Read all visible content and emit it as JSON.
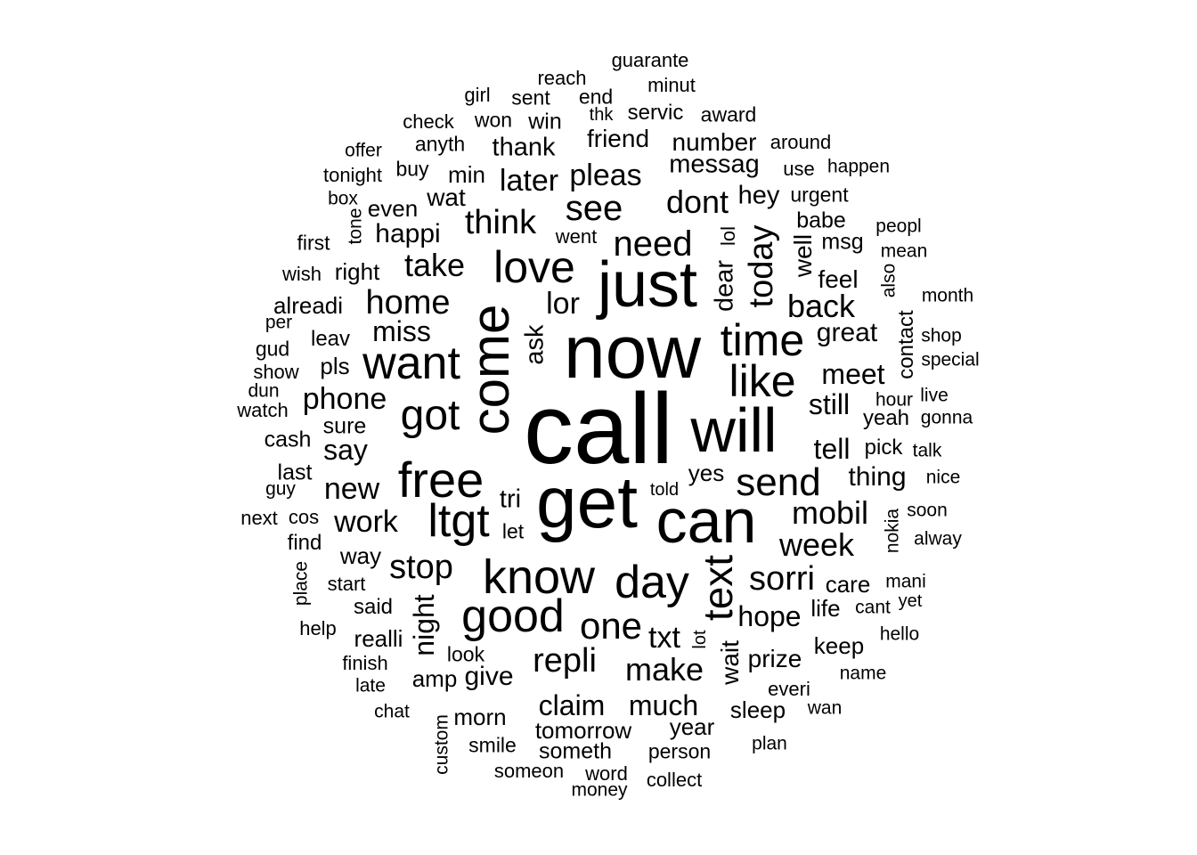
{
  "word_cloud": {
    "text_color": "#000000",
    "background": "#ffffff",
    "words": [
      {
        "text": "call",
        "weight": 100,
        "vertical": false
      },
      {
        "text": "now",
        "weight": 82,
        "vertical": false
      },
      {
        "text": "get",
        "weight": 80,
        "vertical": false
      },
      {
        "text": "can",
        "weight": 70,
        "vertical": false
      },
      {
        "text": "just",
        "weight": 70,
        "vertical": false
      },
      {
        "text": "will",
        "weight": 68,
        "vertical": false
      },
      {
        "text": "come",
        "weight": 58,
        "vertical": true
      },
      {
        "text": "free",
        "weight": 55,
        "vertical": false
      },
      {
        "text": "ltgt",
        "weight": 52,
        "vertical": false
      },
      {
        "text": "know",
        "weight": 52,
        "vertical": false
      },
      {
        "text": "good",
        "weight": 50,
        "vertical": false
      },
      {
        "text": "day",
        "weight": 50,
        "vertical": false
      },
      {
        "text": "want",
        "weight": 50,
        "vertical": false
      },
      {
        "text": "time",
        "weight": 48,
        "vertical": false
      },
      {
        "text": "love",
        "weight": 48,
        "vertical": false
      },
      {
        "text": "like",
        "weight": 48,
        "vertical": false
      },
      {
        "text": "text",
        "weight": 45,
        "vertical": true
      },
      {
        "text": "got",
        "weight": 46,
        "vertical": false
      },
      {
        "text": "send",
        "weight": 42,
        "vertical": false
      },
      {
        "text": "one",
        "weight": 40,
        "vertical": false
      },
      {
        "text": "need",
        "weight": 38,
        "vertical": false
      },
      {
        "text": "see",
        "weight": 38,
        "vertical": false
      },
      {
        "text": "today",
        "weight": 36,
        "vertical": true
      },
      {
        "text": "think",
        "weight": 36,
        "vertical": false
      },
      {
        "text": "repli",
        "weight": 36,
        "vertical": false
      },
      {
        "text": "stop",
        "weight": 36,
        "vertical": false
      },
      {
        "text": "home",
        "weight": 36,
        "vertical": false
      },
      {
        "text": "sorri",
        "weight": 36,
        "vertical": false
      },
      {
        "text": "back",
        "weight": 34,
        "vertical": false
      },
      {
        "text": "take",
        "weight": 34,
        "vertical": false
      },
      {
        "text": "make",
        "weight": 34,
        "vertical": false
      },
      {
        "text": "mobil",
        "weight": 34,
        "vertical": false
      },
      {
        "text": "week",
        "weight": 34,
        "vertical": false
      },
      {
        "text": "dont",
        "weight": 34,
        "vertical": false
      },
      {
        "text": "phone",
        "weight": 33,
        "vertical": false
      },
      {
        "text": "lor",
        "weight": 33,
        "vertical": false
      },
      {
        "text": "pleas",
        "weight": 33,
        "vertical": false
      },
      {
        "text": "later",
        "weight": 33,
        "vertical": false
      },
      {
        "text": "txt",
        "weight": 33,
        "vertical": false
      },
      {
        "text": "new",
        "weight": 32,
        "vertical": false
      },
      {
        "text": "work",
        "weight": 32,
        "vertical": false
      },
      {
        "text": "miss",
        "weight": 32,
        "vertical": false
      },
      {
        "text": "meet",
        "weight": 32,
        "vertical": false
      },
      {
        "text": "still",
        "weight": 32,
        "vertical": false
      },
      {
        "text": "tell",
        "weight": 32,
        "vertical": false
      },
      {
        "text": "hope",
        "weight": 32,
        "vertical": false
      },
      {
        "text": "much",
        "weight": 32,
        "vertical": false
      },
      {
        "text": "claim",
        "weight": 32,
        "vertical": false
      },
      {
        "text": "night",
        "weight": 31,
        "vertical": true
      },
      {
        "text": "say",
        "weight": 30,
        "vertical": false
      },
      {
        "text": "happi",
        "weight": 30,
        "vertical": false
      },
      {
        "text": "thing",
        "weight": 30,
        "vertical": false
      },
      {
        "text": "great",
        "weight": 30,
        "vertical": false
      },
      {
        "text": "give",
        "weight": 30,
        "vertical": false
      },
      {
        "text": "messag",
        "weight": 29,
        "vertical": false
      },
      {
        "text": "thank",
        "weight": 29,
        "vertical": false
      },
      {
        "text": "dear",
        "weight": 28,
        "vertical": true
      },
      {
        "text": "ask",
        "weight": 28,
        "vertical": true
      },
      {
        "text": "tri",
        "weight": 28,
        "vertical": false
      },
      {
        "text": "hey",
        "weight": 28,
        "vertical": false
      },
      {
        "text": "number",
        "weight": 27,
        "vertical": false
      },
      {
        "text": "friend",
        "weight": 27,
        "vertical": false
      },
      {
        "text": "wait",
        "weight": 27,
        "vertical": true
      },
      {
        "text": "well",
        "weight": 27,
        "vertical": true
      },
      {
        "text": "feel",
        "weight": 27,
        "vertical": false
      },
      {
        "text": "wat",
        "weight": 27,
        "vertical": false
      },
      {
        "text": "prize",
        "weight": 27,
        "vertical": false
      },
      {
        "text": "way",
        "weight": 26,
        "vertical": false
      },
      {
        "text": "min",
        "weight": 26,
        "vertical": false
      },
      {
        "text": "yes",
        "weight": 26,
        "vertical": false
      },
      {
        "text": "pls",
        "weight": 26,
        "vertical": false
      },
      {
        "text": "tomorrow",
        "weight": 26,
        "vertical": false
      },
      {
        "text": "even",
        "weight": 26,
        "vertical": false
      },
      {
        "text": "amp",
        "weight": 25,
        "vertical": false
      },
      {
        "text": "morn",
        "weight": 25,
        "vertical": false
      },
      {
        "text": "right",
        "weight": 25,
        "vertical": false
      },
      {
        "text": "care",
        "weight": 25,
        "vertical": false
      },
      {
        "text": "keep",
        "weight": 25,
        "vertical": false
      },
      {
        "text": "sleep",
        "weight": 25,
        "vertical": false
      },
      {
        "text": "realli",
        "weight": 25,
        "vertical": false
      },
      {
        "text": "year",
        "weight": 25,
        "vertical": false
      },
      {
        "text": "alreadi",
        "weight": 25,
        "vertical": false
      },
      {
        "text": "life",
        "weight": 25,
        "vertical": false
      },
      {
        "text": "cash",
        "weight": 24,
        "vertical": false
      },
      {
        "text": "sure",
        "weight": 24,
        "vertical": false
      },
      {
        "text": "last",
        "weight": 24,
        "vertical": false
      },
      {
        "text": "someth",
        "weight": 24,
        "vertical": false
      },
      {
        "text": "msg",
        "weight": 24,
        "vertical": false
      },
      {
        "text": "babe",
        "weight": 24,
        "vertical": false
      },
      {
        "text": "win",
        "weight": 24,
        "vertical": false
      },
      {
        "text": "servic",
        "weight": 24,
        "vertical": false
      },
      {
        "text": "said",
        "weight": 24,
        "vertical": false
      },
      {
        "text": "leav",
        "weight": 24,
        "vertical": false
      },
      {
        "text": "find",
        "weight": 24,
        "vertical": false
      },
      {
        "text": "contact",
        "weight": 24,
        "vertical": true
      },
      {
        "text": "pick",
        "weight": 24,
        "vertical": false
      },
      {
        "text": "yeah",
        "weight": 24,
        "vertical": false
      },
      {
        "text": "urgent",
        "weight": 23,
        "vertical": false
      },
      {
        "text": "anyth",
        "weight": 23,
        "vertical": false
      },
      {
        "text": "person",
        "weight": 23,
        "vertical": false
      },
      {
        "text": "smile",
        "weight": 23,
        "vertical": false
      },
      {
        "text": "won",
        "weight": 23,
        "vertical": false
      },
      {
        "text": "sent",
        "weight": 23,
        "vertical": false
      },
      {
        "text": "end",
        "weight": 23,
        "vertical": false
      },
      {
        "text": "award",
        "weight": 23,
        "vertical": false
      },
      {
        "text": "look",
        "weight": 23,
        "vertical": false
      },
      {
        "text": "let",
        "weight": 23,
        "vertical": false
      },
      {
        "text": "first",
        "weight": 23,
        "vertical": false
      },
      {
        "text": "gud",
        "weight": 23,
        "vertical": false
      },
      {
        "text": "buy",
        "weight": 23,
        "vertical": false
      },
      {
        "text": "lol",
        "weight": 22,
        "vertical": true
      },
      {
        "text": "went",
        "weight": 22,
        "vertical": false
      },
      {
        "text": "girl",
        "weight": 22,
        "vertical": false
      },
      {
        "text": "minut",
        "weight": 22,
        "vertical": false
      },
      {
        "text": "guarante",
        "weight": 22,
        "vertical": false
      },
      {
        "text": "reach",
        "weight": 22,
        "vertical": false
      },
      {
        "text": "check",
        "weight": 22,
        "vertical": false
      },
      {
        "text": "tonight",
        "weight": 22,
        "vertical": false
      },
      {
        "text": "around",
        "weight": 22,
        "vertical": false
      },
      {
        "text": "use",
        "weight": 22,
        "vertical": false
      },
      {
        "text": "happen",
        "weight": 21,
        "vertical": false
      },
      {
        "text": "offer",
        "weight": 21,
        "vertical": false
      },
      {
        "text": "box",
        "weight": 21,
        "vertical": false
      },
      {
        "text": "tone",
        "weight": 21,
        "vertical": true
      },
      {
        "text": "wish",
        "weight": 22,
        "vertical": false
      },
      {
        "text": "per",
        "weight": 21,
        "vertical": false
      },
      {
        "text": "show",
        "weight": 22,
        "vertical": false
      },
      {
        "text": "dun",
        "weight": 21,
        "vertical": false
      },
      {
        "text": "watch",
        "weight": 22,
        "vertical": false
      },
      {
        "text": "guy",
        "weight": 21,
        "vertical": false
      },
      {
        "text": "next",
        "weight": 22,
        "vertical": false
      },
      {
        "text": "cos",
        "weight": 22,
        "vertical": false
      },
      {
        "text": "place",
        "weight": 21,
        "vertical": true
      },
      {
        "text": "start",
        "weight": 22,
        "vertical": false
      },
      {
        "text": "help",
        "weight": 22,
        "vertical": false
      },
      {
        "text": "finish",
        "weight": 22,
        "vertical": false
      },
      {
        "text": "late",
        "weight": 21,
        "vertical": false
      },
      {
        "text": "chat",
        "weight": 21,
        "vertical": false
      },
      {
        "text": "custom",
        "weight": 21,
        "vertical": true
      },
      {
        "text": "someon",
        "weight": 22,
        "vertical": false
      },
      {
        "text": "word",
        "weight": 22,
        "vertical": false
      },
      {
        "text": "money",
        "weight": 21,
        "vertical": false
      },
      {
        "text": "collect",
        "weight": 22,
        "vertical": false
      },
      {
        "text": "plan",
        "weight": 21,
        "vertical": false
      },
      {
        "text": "wan",
        "weight": 21,
        "vertical": false
      },
      {
        "text": "everi",
        "weight": 22,
        "vertical": false
      },
      {
        "text": "name",
        "weight": 21,
        "vertical": false
      },
      {
        "text": "hello",
        "weight": 21,
        "vertical": false
      },
      {
        "text": "mani",
        "weight": 21,
        "vertical": false
      },
      {
        "text": "cant",
        "weight": 21,
        "vertical": false
      },
      {
        "text": "yet",
        "weight": 20,
        "vertical": false
      },
      {
        "text": "alway",
        "weight": 21,
        "vertical": false
      },
      {
        "text": "soon",
        "weight": 21,
        "vertical": false
      },
      {
        "text": "nokia",
        "weight": 21,
        "vertical": true
      },
      {
        "text": "nice",
        "weight": 21,
        "vertical": false
      },
      {
        "text": "talk",
        "weight": 21,
        "vertical": false
      },
      {
        "text": "gonna",
        "weight": 21,
        "vertical": false
      },
      {
        "text": "hour",
        "weight": 21,
        "vertical": false
      },
      {
        "text": "live",
        "weight": 21,
        "vertical": false
      },
      {
        "text": "special",
        "weight": 21,
        "vertical": false
      },
      {
        "text": "shop",
        "weight": 21,
        "vertical": false
      },
      {
        "text": "month",
        "weight": 21,
        "vertical": false
      },
      {
        "text": "also",
        "weight": 21,
        "vertical": true
      },
      {
        "text": "mean",
        "weight": 21,
        "vertical": false
      },
      {
        "text": "peopl",
        "weight": 21,
        "vertical": false
      },
      {
        "text": "told",
        "weight": 20,
        "vertical": false
      },
      {
        "text": "lot",
        "weight": 20,
        "vertical": true
      },
      {
        "text": "thk",
        "weight": 20,
        "vertical": false
      }
    ]
  }
}
